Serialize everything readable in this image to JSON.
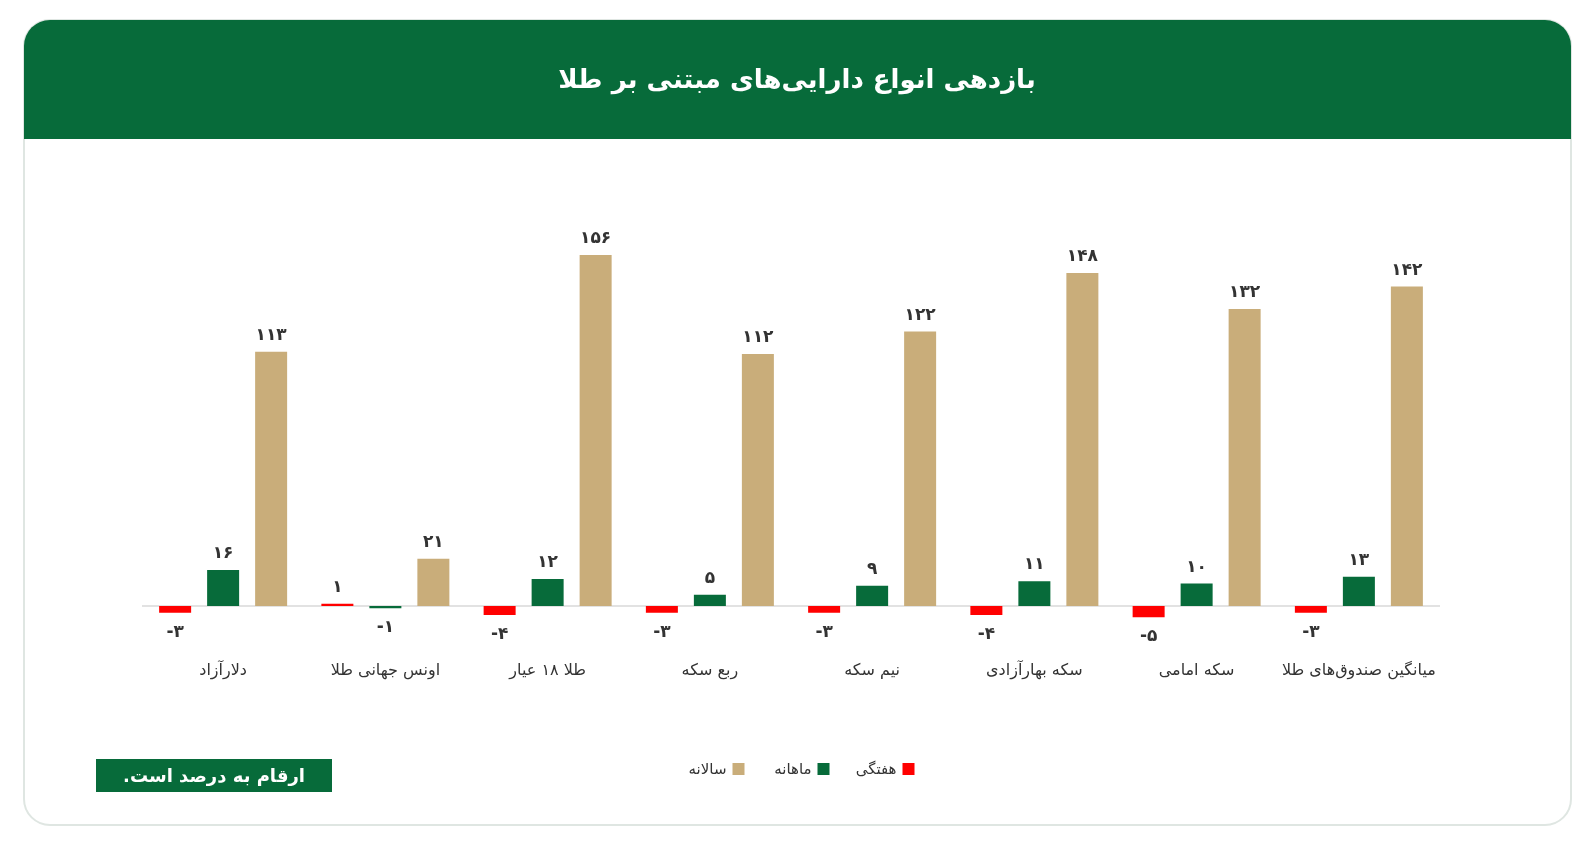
{
  "chart_data": {
    "type": "bar",
    "title": "بازدهی انواع دارایی‌های مبتنی بر طلا",
    "categories": [
      "دلارآزاد",
      "اونس جهانی طلا",
      "طلا ۱۸ عیار",
      "ربع سکه",
      "نیم سکه",
      "سکه بهارآزادی",
      "سکه امامی",
      "میانگین صندوق‌های طلا"
    ],
    "series": [
      {
        "name": "هفتگی",
        "color": "#ff0000",
        "values": [
          -3,
          1,
          -4,
          -3,
          -3,
          -4,
          -5,
          -3
        ],
        "value_labels": [
          "-۳",
          "۱",
          "-۴",
          "-۳",
          "-۳",
          "-۴",
          "-۵",
          "-۳"
        ]
      },
      {
        "name": "ماهانه",
        "color": "#076b3a",
        "values": [
          16,
          -1,
          12,
          5,
          9,
          11,
          10,
          13
        ],
        "value_labels": [
          "۱۶",
          "-۱",
          "۱۲",
          "۵",
          "۹",
          "۱۱",
          "۱۰",
          "۱۳"
        ]
      },
      {
        "name": "سالانه",
        "color": "#c9ad7a",
        "values": [
          113,
          21,
          156,
          112,
          122,
          148,
          132,
          142
        ],
        "value_labels": [
          "۱۱۳",
          "۲۱",
          "۱۵۶",
          "۱۱۲",
          "۱۲۲",
          "۱۴۸",
          "۱۳۲",
          "۱۴۲"
        ]
      }
    ],
    "legend": "bottom",
    "annotations": [
      "ارقام به درصد است."
    ]
  }
}
